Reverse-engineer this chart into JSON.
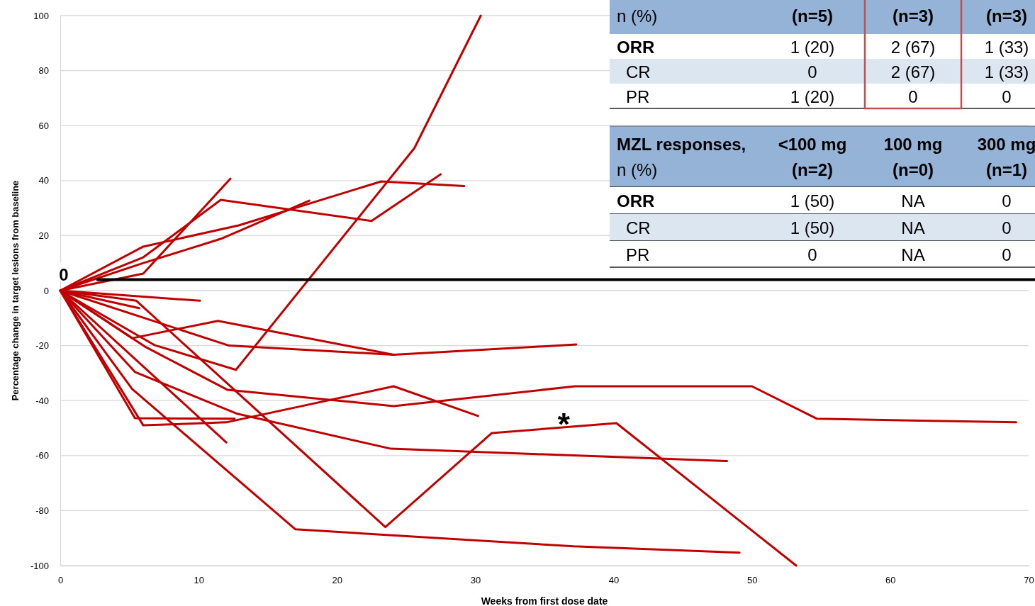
{
  "chart_data": {
    "type": "line",
    "xlabel": "Weeks from first dose date",
    "ylabel": "Percentage change in target lesions from baseline",
    "xlim": [
      0,
      70
    ],
    "xticks": [
      0,
      10,
      20,
      30,
      40,
      50,
      60,
      70
    ],
    "ylim": [
      -100,
      100
    ],
    "yticks": [
      -100,
      -80,
      -60,
      -40,
      -20,
      0,
      20,
      40,
      60,
      80,
      100
    ],
    "grid": "y",
    "ref_lines": [
      {
        "axis": "y",
        "value": 4,
        "color": "#000000"
      }
    ],
    "series": [
      {
        "color": "#c00000",
        "x": [
          0,
          6.0,
          12.3
        ],
        "values": [
          0,
          6.2,
          40.7
        ]
      },
      {
        "color": "#c00000",
        "x": [
          0,
          6.0,
          11.6,
          22.5,
          27.5
        ],
        "values": [
          0,
          12.1,
          33,
          25.3,
          42.3
        ]
      },
      {
        "color": "#c00000",
        "x": [
          0,
          6.0,
          12.9,
          23.2,
          29.2
        ],
        "values": [
          0,
          16,
          23.7,
          39.7,
          38
        ]
      },
      {
        "color": "#c00000",
        "x": [
          0,
          6.0,
          11.6,
          18.0
        ],
        "values": [
          0,
          10,
          18.8,
          32.7
        ]
      },
      {
        "color": "#c00000",
        "x": [
          0,
          10.1
        ],
        "values": [
          0,
          -3.7
        ]
      },
      {
        "color": "#c00000",
        "x": [
          0,
          5.7
        ],
        "values": [
          0,
          -6.4
        ]
      },
      {
        "color": "#c00000",
        "x": [
          0,
          5.5,
          23.5,
          31.2,
          40.2,
          53.2
        ],
        "values": [
          0,
          -3.7,
          -86,
          -51.8,
          -48.2,
          -100
        ]
      },
      {
        "color": "#c00000",
        "x": [
          0,
          6.8,
          12.7,
          25.6,
          30.4
        ],
        "values": [
          0,
          -19.8,
          -28.8,
          51.8,
          100
        ]
      },
      {
        "color": "#c00000",
        "x": [
          0,
          5.2,
          11.4,
          24.1
        ],
        "values": [
          0,
          -17.3,
          -11,
          -23.3
        ]
      },
      {
        "color": "#c00000",
        "x": [
          0,
          12.2,
          24.1,
          37.3
        ],
        "values": [
          0,
          -20,
          -23.3,
          -19.6
        ]
      },
      {
        "color": "#c00000",
        "x": [
          0,
          6.2,
          12.1,
          24.1,
          37.2,
          50,
          54.7,
          69.1
        ],
        "values": [
          0,
          -20.6,
          -36.1,
          -42,
          -34.8,
          -34.8,
          -46.6,
          -47.9
        ]
      },
      {
        "color": "#c00000",
        "x": [
          0,
          5.4,
          12.8,
          23.9,
          48.2
        ],
        "values": [
          0,
          -29.6,
          -44.8,
          -57.5,
          -62
        ]
      },
      {
        "color": "#c00000",
        "x": [
          0,
          5.2,
          17.0,
          37.1,
          49.1
        ],
        "values": [
          0,
          -35.8,
          -86.8,
          -93,
          -95.3
        ]
      },
      {
        "color": "#c00000",
        "x": [
          0,
          5.4,
          12.6
        ],
        "values": [
          0,
          -46.4,
          -46.6
        ]
      },
      {
        "color": "#c00000",
        "x": [
          0,
          6.0,
          12.0,
          24.1,
          30.2
        ],
        "values": [
          0,
          -49,
          -47.9,
          -34.8,
          -45.6
        ]
      },
      {
        "color": "#c00000",
        "x": [
          0,
          12.0
        ],
        "values": [
          0,
          -55.2
        ]
      }
    ],
    "annotations": [
      {
        "text": "*",
        "x": 36.4,
        "y": -49
      },
      "0",
      "n (%)",
      "(n=5)",
      "(n=3)",
      "(n=3)",
      "ORR",
      "1 (20)",
      "2 (67)",
      "1 (33)",
      "CR",
      "0",
      "2 (67)",
      "1 (33)",
      "PR",
      "1 (20)",
      "0",
      "0",
      "MZL responses,",
      "<100 mg",
      "100 mg",
      "300 mg",
      "n (%)",
      "(n=2)",
      "(n=0)",
      "(n=1)",
      "ORR",
      "1 (50)",
      "NA",
      "0",
      "CR",
      "1 (50)",
      "NA",
      "0",
      "PR",
      "0",
      "NA",
      "0"
    ]
  }
}
